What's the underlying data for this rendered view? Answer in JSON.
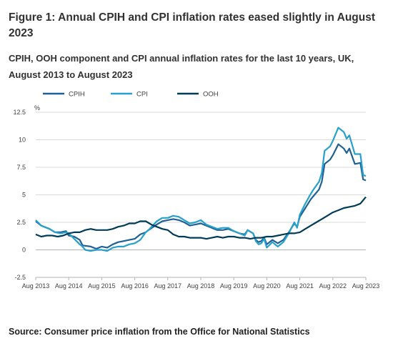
{
  "title": "Figure 1: Annual CPIH and CPI inflation rates eased slightly in August 2023",
  "subtitle": "CPIH, OOH component and CPI annual inflation rates for the last 10 years, UK, August 2013 to August 2023",
  "source": "Source: Consumer price inflation from the Office for National Statistics",
  "chart_data": {
    "type": "line",
    "ylabel": "%",
    "ylim": [
      -2.5,
      12.5
    ],
    "yticks": [
      12.5,
      10,
      7.5,
      5,
      2.5,
      0,
      -2.5
    ],
    "xlim": [
      2013.583,
      2023.583
    ],
    "xticks": [
      {
        "x": 2013.583,
        "label": "Aug 2013"
      },
      {
        "x": 2014.583,
        "label": "Aug 2014"
      },
      {
        "x": 2015.583,
        "label": "Aug 2015"
      },
      {
        "x": 2016.583,
        "label": "Aug 2016"
      },
      {
        "x": 2017.583,
        "label": "Aug 2017"
      },
      {
        "x": 2018.583,
        "label": "Aug 2018"
      },
      {
        "x": 2019.583,
        "label": "Aug 2019"
      },
      {
        "x": 2020.583,
        "label": "Aug 2020"
      },
      {
        "x": 2021.583,
        "label": "Aug 2021"
      },
      {
        "x": 2022.583,
        "label": "Aug 2022"
      },
      {
        "x": 2023.583,
        "label": "Aug 2023"
      }
    ],
    "grid": true,
    "legend_position": "top-left",
    "series": [
      {
        "name": "CPIH",
        "color": "#206095",
        "points": [
          [
            2013.583,
            2.6
          ],
          [
            2013.75,
            2.2
          ],
          [
            2013.917,
            2.0
          ],
          [
            2014.0,
            1.9
          ],
          [
            2014.167,
            1.6
          ],
          [
            2014.333,
            1.6
          ],
          [
            2014.5,
            1.7
          ],
          [
            2014.583,
            1.3
          ],
          [
            2014.75,
            1.2
          ],
          [
            2014.917,
            0.9
          ],
          [
            2015.0,
            0.4
          ],
          [
            2015.25,
            0.3
          ],
          [
            2015.417,
            0.1
          ],
          [
            2015.583,
            0.3
          ],
          [
            2015.75,
            0.2
          ],
          [
            2015.917,
            0.5
          ],
          [
            2016.083,
            0.7
          ],
          [
            2016.25,
            0.8
          ],
          [
            2016.417,
            0.9
          ],
          [
            2016.583,
            1.0
          ],
          [
            2016.75,
            1.4
          ],
          [
            2016.917,
            1.6
          ],
          [
            2017.0,
            1.8
          ],
          [
            2017.25,
            2.3
          ],
          [
            2017.417,
            2.6
          ],
          [
            2017.583,
            2.7
          ],
          [
            2017.75,
            2.8
          ],
          [
            2017.917,
            2.7
          ],
          [
            2018.083,
            2.5
          ],
          [
            2018.25,
            2.2
          ],
          [
            2018.417,
            2.3
          ],
          [
            2018.583,
            2.4
          ],
          [
            2018.75,
            2.2
          ],
          [
            2018.917,
            2.0
          ],
          [
            2019.083,
            1.8
          ],
          [
            2019.25,
            1.8
          ],
          [
            2019.417,
            1.9
          ],
          [
            2019.583,
            1.7
          ],
          [
            2019.75,
            1.5
          ],
          [
            2019.917,
            1.4
          ],
          [
            2020.0,
            1.8
          ],
          [
            2020.167,
            1.5
          ],
          [
            2020.25,
            0.9
          ],
          [
            2020.333,
            0.7
          ],
          [
            2020.417,
            0.8
          ],
          [
            2020.5,
            1.1
          ],
          [
            2020.583,
            0.5
          ],
          [
            2020.75,
            0.9
          ],
          [
            2020.917,
            0.6
          ],
          [
            2021.083,
            0.9
          ],
          [
            2021.25,
            1.6
          ],
          [
            2021.417,
            2.4
          ],
          [
            2021.5,
            2.1
          ],
          [
            2021.583,
            3.0
          ],
          [
            2021.75,
            3.8
          ],
          [
            2021.917,
            4.6
          ],
          [
            2022.0,
            4.9
          ],
          [
            2022.167,
            5.5
          ],
          [
            2022.25,
            6.2
          ],
          [
            2022.333,
            7.8
          ],
          [
            2022.5,
            8.2
          ],
          [
            2022.583,
            8.6
          ],
          [
            2022.75,
            9.6
          ],
          [
            2022.917,
            9.2
          ],
          [
            2023.0,
            8.8
          ],
          [
            2023.083,
            9.2
          ],
          [
            2023.25,
            7.8
          ],
          [
            2023.417,
            7.9
          ],
          [
            2023.5,
            6.4
          ],
          [
            2023.583,
            6.3
          ]
        ]
      },
      {
        "name": "CPI",
        "color": "#27a0cc",
        "points": [
          [
            2013.583,
            2.7
          ],
          [
            2013.75,
            2.2
          ],
          [
            2013.917,
            2.0
          ],
          [
            2014.0,
            1.9
          ],
          [
            2014.167,
            1.6
          ],
          [
            2014.333,
            1.5
          ],
          [
            2014.5,
            1.6
          ],
          [
            2014.583,
            1.5
          ],
          [
            2014.75,
            1.0
          ],
          [
            2014.917,
            0.5
          ],
          [
            2015.0,
            0.3
          ],
          [
            2015.083,
            0.0
          ],
          [
            2015.25,
            -0.1
          ],
          [
            2015.417,
            0.0
          ],
          [
            2015.583,
            0.0
          ],
          [
            2015.75,
            -0.1
          ],
          [
            2015.917,
            0.2
          ],
          [
            2016.083,
            0.3
          ],
          [
            2016.25,
            0.3
          ],
          [
            2016.417,
            0.5
          ],
          [
            2016.583,
            0.6
          ],
          [
            2016.75,
            0.9
          ],
          [
            2016.917,
            1.6
          ],
          [
            2017.0,
            1.8
          ],
          [
            2017.25,
            2.6
          ],
          [
            2017.417,
            2.9
          ],
          [
            2017.583,
            2.9
          ],
          [
            2017.75,
            3.1
          ],
          [
            2017.917,
            3.0
          ],
          [
            2018.083,
            2.7
          ],
          [
            2018.25,
            2.4
          ],
          [
            2018.417,
            2.5
          ],
          [
            2018.583,
            2.7
          ],
          [
            2018.75,
            2.3
          ],
          [
            2018.917,
            2.1
          ],
          [
            2019.083,
            1.9
          ],
          [
            2019.25,
            2.0
          ],
          [
            2019.417,
            2.0
          ],
          [
            2019.583,
            1.7
          ],
          [
            2019.75,
            1.5
          ],
          [
            2019.917,
            1.3
          ],
          [
            2020.0,
            1.8
          ],
          [
            2020.167,
            1.5
          ],
          [
            2020.25,
            0.8
          ],
          [
            2020.333,
            0.5
          ],
          [
            2020.417,
            0.6
          ],
          [
            2020.5,
            1.0
          ],
          [
            2020.583,
            0.2
          ],
          [
            2020.75,
            0.7
          ],
          [
            2020.917,
            0.3
          ],
          [
            2021.083,
            0.7
          ],
          [
            2021.25,
            1.5
          ],
          [
            2021.417,
            2.5
          ],
          [
            2021.5,
            2.0
          ],
          [
            2021.583,
            3.2
          ],
          [
            2021.75,
            4.2
          ],
          [
            2021.917,
            5.1
          ],
          [
            2022.0,
            5.5
          ],
          [
            2022.167,
            6.2
          ],
          [
            2022.25,
            7.0
          ],
          [
            2022.333,
            9.0
          ],
          [
            2022.5,
            9.4
          ],
          [
            2022.583,
            9.9
          ],
          [
            2022.75,
            11.1
          ],
          [
            2022.917,
            10.7
          ],
          [
            2023.0,
            10.1
          ],
          [
            2023.083,
            10.4
          ],
          [
            2023.25,
            8.7
          ],
          [
            2023.417,
            8.7
          ],
          [
            2023.5,
            6.8
          ],
          [
            2023.583,
            6.7
          ]
        ]
      },
      {
        "name": "OOH",
        "color": "#003c57",
        "points": [
          [
            2013.583,
            1.4
          ],
          [
            2013.75,
            1.2
          ],
          [
            2013.917,
            1.3
          ],
          [
            2014.083,
            1.3
          ],
          [
            2014.25,
            1.2
          ],
          [
            2014.417,
            1.3
          ],
          [
            2014.583,
            1.5
          ],
          [
            2014.75,
            1.6
          ],
          [
            2014.917,
            1.6
          ],
          [
            2015.083,
            1.8
          ],
          [
            2015.25,
            1.9
          ],
          [
            2015.417,
            1.8
          ],
          [
            2015.583,
            1.8
          ],
          [
            2015.75,
            1.8
          ],
          [
            2015.917,
            1.9
          ],
          [
            2016.083,
            2.1
          ],
          [
            2016.25,
            2.2
          ],
          [
            2016.417,
            2.4
          ],
          [
            2016.583,
            2.4
          ],
          [
            2016.75,
            2.6
          ],
          [
            2016.917,
            2.6
          ],
          [
            2017.083,
            2.3
          ],
          [
            2017.25,
            2.1
          ],
          [
            2017.417,
            1.9
          ],
          [
            2017.583,
            1.8
          ],
          [
            2017.75,
            1.4
          ],
          [
            2017.917,
            1.2
          ],
          [
            2018.083,
            1.2
          ],
          [
            2018.25,
            1.1
          ],
          [
            2018.417,
            1.1
          ],
          [
            2018.583,
            1.1
          ],
          [
            2018.75,
            1.0
          ],
          [
            2018.917,
            1.1
          ],
          [
            2019.083,
            1.2
          ],
          [
            2019.25,
            1.1
          ],
          [
            2019.417,
            1.2
          ],
          [
            2019.583,
            1.2
          ],
          [
            2019.75,
            1.1
          ],
          [
            2019.917,
            1.1
          ],
          [
            2020.083,
            1.0
          ],
          [
            2020.25,
            1.1
          ],
          [
            2020.417,
            1.1
          ],
          [
            2020.583,
            1.2
          ],
          [
            2020.75,
            1.2
          ],
          [
            2020.917,
            1.3
          ],
          [
            2021.083,
            1.4
          ],
          [
            2021.25,
            1.5
          ],
          [
            2021.417,
            1.5
          ],
          [
            2021.583,
            1.6
          ],
          [
            2021.75,
            1.9
          ],
          [
            2021.917,
            2.2
          ],
          [
            2022.083,
            2.5
          ],
          [
            2022.25,
            2.8
          ],
          [
            2022.417,
            3.1
          ],
          [
            2022.583,
            3.4
          ],
          [
            2022.75,
            3.6
          ],
          [
            2022.917,
            3.8
          ],
          [
            2023.083,
            3.9
          ],
          [
            2023.25,
            4.0
          ],
          [
            2023.417,
            4.2
          ],
          [
            2023.583,
            4.8
          ]
        ]
      }
    ]
  }
}
